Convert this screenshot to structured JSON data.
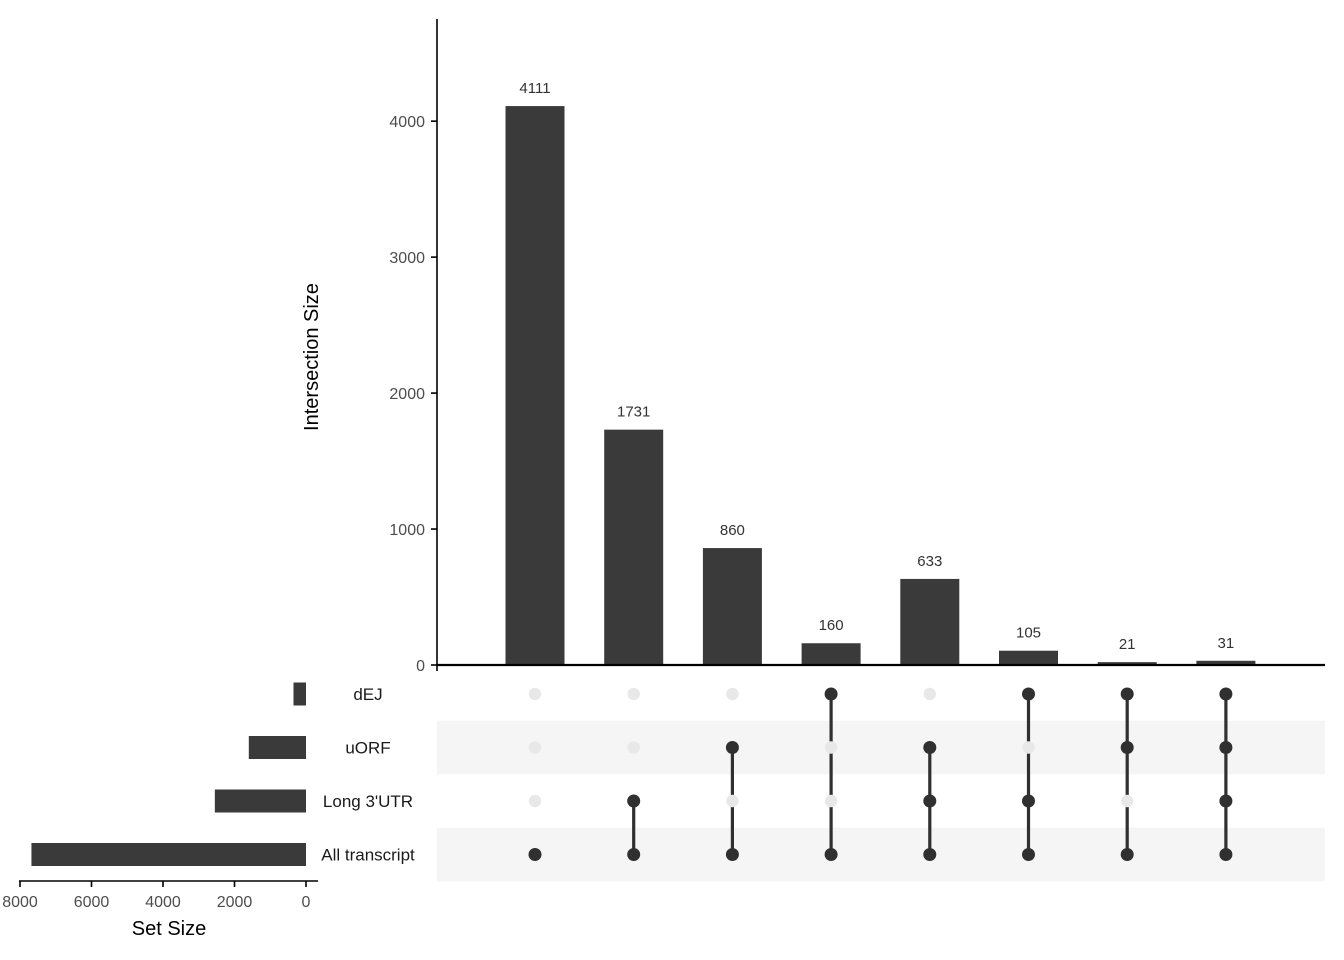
{
  "chart_data": {
    "type": "bar",
    "subtype": "upset",
    "intersection_axis": {
      "ylabel": "Intersection Size",
      "ylim": [
        0,
        4750
      ],
      "ticks": [
        0,
        1000,
        2000,
        3000,
        4000
      ]
    },
    "setsize_axis": {
      "xlabel": "Set Size",
      "xlim": [
        8000,
        0
      ],
      "ticks": [
        8000,
        6000,
        4000,
        2000,
        0
      ]
    },
    "sets": [
      {
        "name": "dEJ",
        "size": 350
      },
      {
        "name": "uORF",
        "size": 1600
      },
      {
        "name": "Long 3'UTR",
        "size": 2550
      },
      {
        "name": "All transcript",
        "size": 7680
      }
    ],
    "intersections": [
      {
        "value": 4111,
        "label": "4111",
        "members": [
          "All transcript"
        ]
      },
      {
        "value": 1731,
        "label": "1731",
        "members": [
          "All transcript",
          "Long 3'UTR"
        ]
      },
      {
        "value": 860,
        "label": "860",
        "members": [
          "All transcript",
          "uORF"
        ]
      },
      {
        "value": 160,
        "label": "160",
        "members": [
          "All transcript",
          "dEJ"
        ]
      },
      {
        "value": 633,
        "label": "633",
        "members": [
          "All transcript",
          "Long 3'UTR",
          "uORF"
        ]
      },
      {
        "value": 105,
        "label": "105",
        "members": [
          "All transcript",
          "Long 3'UTR",
          "dEJ"
        ]
      },
      {
        "value": 21,
        "label": "21",
        "members": [
          "All transcript",
          "uORF",
          "dEJ"
        ]
      },
      {
        "value": 31,
        "label": "31",
        "members": [
          "All transcript",
          "Long 3'UTR",
          "uORF",
          "dEJ"
        ]
      }
    ],
    "colors": {
      "bar": "#3a3a3a",
      "dot_active": "#303030",
      "dot_inactive": "#e8e8e8",
      "stripe": "#f5f5f5",
      "axis": "#000000"
    },
    "grid": false
  }
}
